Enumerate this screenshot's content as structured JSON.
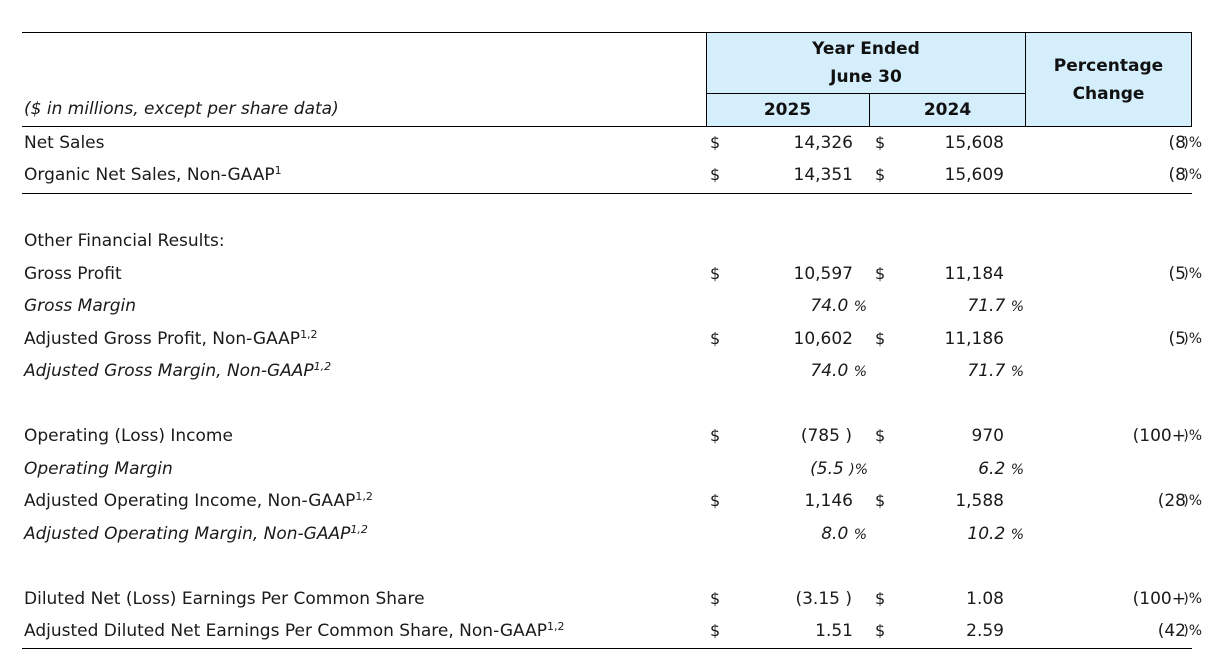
{
  "header": {
    "units_note": "($ in millions, except per share data)",
    "period_title_line1": "Year Ended",
    "period_title_line2": "June 30",
    "year_current": "2025",
    "year_prior": "2024",
    "change_title_line1": "Percentage",
    "change_title_line2": "Change"
  },
  "rows": {
    "net_sales": {
      "label": "Net Sales",
      "cur_a": "$",
      "a": "14,326",
      "cur_b": "$",
      "b": "15,608",
      "change": "(8",
      "change_suffix": ")%"
    },
    "organic_net_sales": {
      "label": "Organic Net Sales, Non-GAAP",
      "sup": "1",
      "cur_a": "$",
      "a": "14,351",
      "cur_b": "$",
      "b": "15,609",
      "change": "(8",
      "change_suffix": ")%"
    },
    "other_financial": {
      "label": "Other Financial Results:"
    },
    "gross_profit": {
      "label": "Gross Profit",
      "cur_a": "$",
      "a": "10,597",
      "cur_b": "$",
      "b": "11,184",
      "change": "(5",
      "change_suffix": ")%"
    },
    "gross_margin": {
      "label": "Gross Margin",
      "a": "74.0",
      "a_suffix": "%",
      "b": "71.7",
      "b_suffix": "%"
    },
    "adj_gross_profit": {
      "label": "Adjusted Gross Profit, Non-GAAP",
      "sup": "1,2",
      "cur_a": "$",
      "a": "10,602",
      "cur_b": "$",
      "b": "11,186",
      "change": "(5",
      "change_suffix": ")%"
    },
    "adj_gross_margin": {
      "label": "Adjusted Gross Margin, Non-GAAP",
      "sup": "1,2",
      "a": "74.0",
      "a_suffix": "%",
      "b": "71.7",
      "b_suffix": "%"
    },
    "operating_income": {
      "label": "Operating (Loss) Income",
      "cur_a": "$",
      "a": "(785",
      "a_suffix": ")",
      "cur_b": "$",
      "b": "970",
      "change": "(100+",
      "change_suffix": ")%"
    },
    "operating_margin": {
      "label": "Operating Margin",
      "a": "(5.5",
      "a_suffix": ")%",
      "b": "6.2",
      "b_suffix": "%"
    },
    "adj_operating_income": {
      "label": "Adjusted Operating Income, Non-GAAP",
      "sup": "1,2",
      "cur_a": "$",
      "a": "1,146",
      "cur_b": "$",
      "b": "1,588",
      "change": "(28",
      "change_suffix": ")%"
    },
    "adj_operating_margin": {
      "label": "Adjusted Operating Margin, Non-GAAP",
      "sup": "1,2",
      "a": "8.0",
      "a_suffix": "%",
      "b": "10.2",
      "b_suffix": "%"
    },
    "diluted_eps": {
      "label": "Diluted Net (Loss) Earnings Per Common Share",
      "cur_a": "$",
      "a": "(3.15",
      "a_suffix": ")",
      "cur_b": "$",
      "b": "1.08",
      "change": "(100+",
      "change_suffix": ")%"
    },
    "adj_diluted_eps": {
      "label": "Adjusted Diluted Net Earnings Per Common Share, Non-GAAP",
      "sup": "1,2",
      "cur_a": "$",
      "a": "1.51",
      "cur_b": "$",
      "b": "2.59",
      "change": "(42",
      "change_suffix": ")%"
    }
  },
  "colors": {
    "header_band": "#d4eefc",
    "rule": "#000000",
    "text": "#1a1a1a"
  }
}
